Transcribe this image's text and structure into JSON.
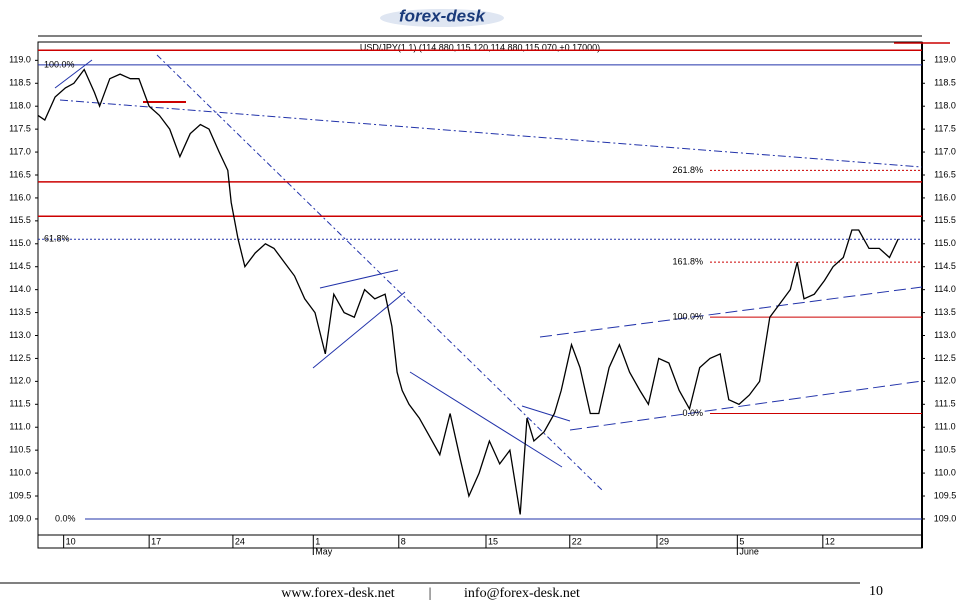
{
  "brand": "forex-desk",
  "footer": {
    "site": "www.forex-desk.net",
    "separator": "|",
    "email": "info@forex-desk.net",
    "page": "10"
  },
  "chart_data": {
    "type": "line",
    "title": "USD/JPY(1.1) (114.880,115.120,114.880,115.070,+0.17000)",
    "xlim": [
      -1.5,
      50.2
    ],
    "ylim": [
      108.65,
      119.4
    ],
    "xticks": [
      {
        "value": 0,
        "label": "10"
      },
      {
        "value": 5,
        "label": "17"
      },
      {
        "value": 9.9,
        "label": "24"
      },
      {
        "value": 14.6,
        "label": "1"
      },
      {
        "value": 19.6,
        "label": "8"
      },
      {
        "value": 24.7,
        "label": "15"
      },
      {
        "value": 29.6,
        "label": "22"
      },
      {
        "value": 34.7,
        "label": "29"
      },
      {
        "value": 39.4,
        "label": "5"
      },
      {
        "value": 44.4,
        "label": "12"
      }
    ],
    "month_labels": [
      {
        "value": 14.6,
        "label": "May"
      },
      {
        "value": 39.4,
        "label": "June"
      }
    ],
    "yticks": [
      {
        "value": 119,
        "label": "119.0"
      },
      {
        "value": 118.5,
        "label": "118.5"
      },
      {
        "value": 118,
        "label": "118.0"
      },
      {
        "value": 117.5,
        "label": "117.5"
      },
      {
        "value": 117,
        "label": "117.0"
      },
      {
        "value": 116.5,
        "label": "116.5"
      },
      {
        "value": 116,
        "label": "116.0"
      },
      {
        "value": 115.5,
        "label": "115.5"
      },
      {
        "value": 115,
        "label": "115.0"
      },
      {
        "value": 114.5,
        "label": "114.5"
      },
      {
        "value": 114,
        "label": "114.0"
      },
      {
        "value": 113.5,
        "label": "113.5"
      },
      {
        "value": 113,
        "label": "113.0"
      },
      {
        "value": 112.5,
        "label": "112.5"
      },
      {
        "value": 112,
        "label": "112.0"
      },
      {
        "value": 111.5,
        "label": "111.5"
      },
      {
        "value": 111,
        "label": "111.0"
      },
      {
        "value": 110.5,
        "label": "110.5"
      },
      {
        "value": 110,
        "label": "110.0"
      },
      {
        "value": 109.5,
        "label": "109.5"
      },
      {
        "value": 109,
        "label": "109.0"
      }
    ],
    "grid": false,
    "x": [
      -1.5,
      -1.1,
      -0.5,
      0.1,
      0.6,
      1.2,
      1.8,
      2.1,
      2.7,
      3.3,
      3.9,
      4.4,
      5.0,
      5.6,
      6.2,
      6.8,
      7.4,
      8.0,
      8.5,
      9.1,
      9.6,
      9.8,
      10.2,
      10.6,
      11.2,
      11.8,
      12.3,
      12.9,
      13.5,
      14.1,
      14.7,
      15.3,
      15.8,
      16.4,
      17.0,
      17.6,
      18.2,
      18.8,
      19.2,
      19.5,
      19.8,
      20.2,
      20.8,
      21.4,
      22.0,
      22.6,
      23.2,
      23.7,
      24.3,
      24.9,
      25.5,
      26.1,
      26.7,
      27.1,
      27.5,
      28.1,
      28.7,
      29.1,
      29.7,
      30.2,
      30.8,
      31.3,
      31.9,
      32.5,
      33.1,
      33.7,
      34.2,
      34.8,
      35.4,
      36.0,
      36.6,
      37.2,
      37.8,
      38.4,
      38.9,
      39.5,
      40.1,
      40.7,
      41.3,
      41.9,
      42.5,
      42.9,
      43.3,
      43.9,
      44.5,
      45.0,
      45.6,
      46.1,
      46.5,
      47.1,
      47.7,
      48.3,
      48.8
    ],
    "series": [
      {
        "color": "#000000",
        "values": [
          117.8,
          117.7,
          118.2,
          118.4,
          118.5,
          118.8,
          118.3,
          118.0,
          118.6,
          118.7,
          118.6,
          118.6,
          118.0,
          117.8,
          117.5,
          116.9,
          117.4,
          117.6,
          117.5,
          117.0,
          116.6,
          115.9,
          115.1,
          114.5,
          114.8,
          115.0,
          114.9,
          114.6,
          114.3,
          113.8,
          113.5,
          112.6,
          113.9,
          113.5,
          113.4,
          114.0,
          113.8,
          113.9,
          113.2,
          112.2,
          111.8,
          111.5,
          111.2,
          110.8,
          110.4,
          111.3,
          110.3,
          109.5,
          110.0,
          110.7,
          110.2,
          110.5,
          109.1,
          111.2,
          110.7,
          110.9,
          111.3,
          111.8,
          112.8,
          112.3,
          111.3,
          111.3,
          112.3,
          112.8,
          112.2,
          111.8,
          111.5,
          112.5,
          112.4,
          111.8,
          111.4,
          112.3,
          112.5,
          112.6,
          111.6,
          111.5,
          111.7,
          112.0,
          113.4,
          113.7,
          114.0,
          114.6,
          113.8,
          113.9,
          114.2,
          114.5,
          114.7,
          115.3,
          115.3,
          114.9,
          114.9,
          114.7,
          115.1
        ]
      }
    ],
    "red_lines": {
      "color": "#cc0000",
      "values": [
        119.22,
        116.35,
        115.6
      ]
    },
    "fib_left": {
      "color": "#2233aa",
      "levels": [
        {
          "value": 118.9,
          "label": "100.0%"
        },
        {
          "value": 115.1,
          "label": "61.8%"
        },
        {
          "value": 109.0,
          "label": "0.0%"
        }
      ]
    },
    "fib_right": {
      "color": "#cc0000",
      "levels": [
        {
          "value": 116.6,
          "label": "261.8%"
        },
        {
          "value": 114.6,
          "label": "161.8%"
        },
        {
          "value": 113.4,
          "label": "100.0%"
        },
        {
          "value": 111.3,
          "label": "0.0%"
        }
      ]
    }
  }
}
